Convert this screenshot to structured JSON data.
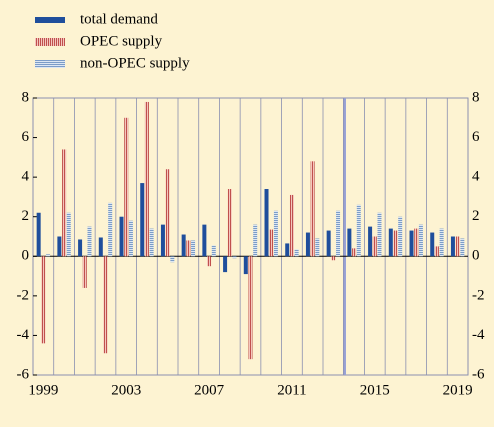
{
  "chart_data": {
    "type": "bar",
    "categories": [
      "1999",
      null,
      null,
      null,
      "2003",
      null,
      null,
      null,
      "2007",
      null,
      null,
      null,
      "2011",
      null,
      null,
      null,
      "2015",
      null,
      null,
      null,
      "2019"
    ],
    "series": [
      {
        "name": "total demand",
        "color": "#1f4e9c",
        "values": [
          2.2,
          1.0,
          0.85,
          0.95,
          2.0,
          3.7,
          1.6,
          1.1,
          1.6,
          -0.8,
          -0.9,
          3.4,
          0.65,
          1.2,
          1.3,
          1.4,
          1.5,
          1.4,
          1.3,
          1.2,
          1.0
        ]
      },
      {
        "name": "OPEC supply",
        "color": "#c0504d",
        "values": [
          -4.4,
          5.4,
          -1.6,
          -4.9,
          7.0,
          7.8,
          4.4,
          0.8,
          -0.5,
          3.4,
          -5.2,
          1.35,
          3.1,
          4.8,
          -0.2,
          0.4,
          1.0,
          1.3,
          1.4,
          0.5,
          1.0
        ]
      },
      {
        "name": "non-OPEC supply",
        "color": "#7b9cc7",
        "values": [
          0.1,
          2.2,
          1.5,
          2.7,
          1.8,
          1.4,
          -0.3,
          0.8,
          0.55,
          -0.1,
          1.6,
          2.3,
          0.35,
          0.9,
          2.3,
          2.6,
          2.2,
          2.0,
          1.6,
          1.4,
          0.9
        ]
      }
    ],
    "ylim": [
      -6,
      8
    ],
    "yticks": [
      -6,
      -4,
      -2,
      0,
      2,
      4,
      6,
      8
    ],
    "grid": true
  }
}
